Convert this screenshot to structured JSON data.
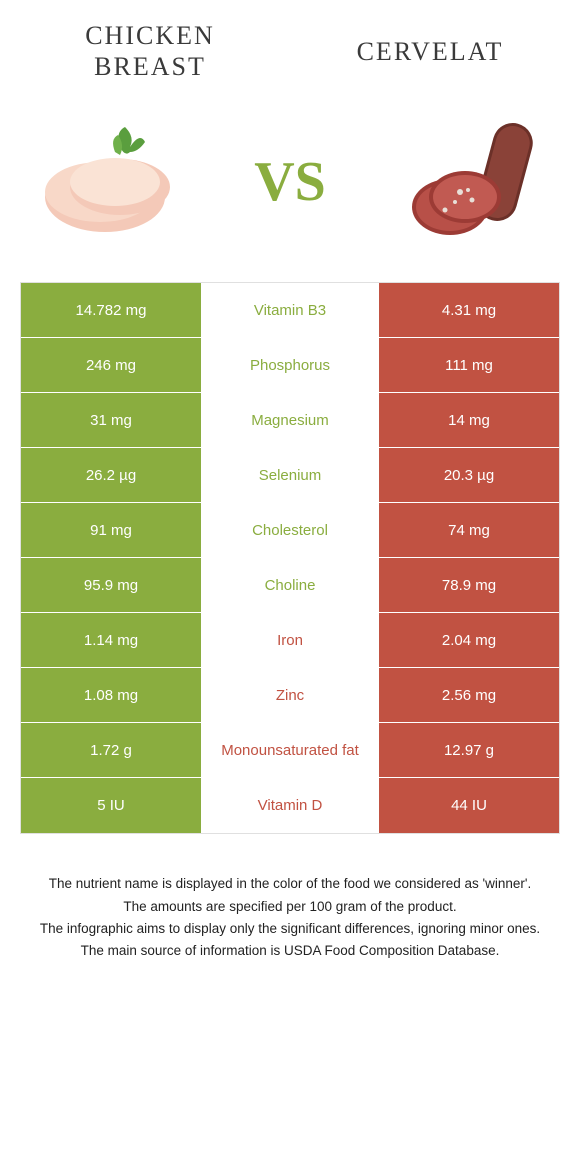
{
  "header": {
    "left_title": "CHICKEN BREAST",
    "right_title": "CERVELAT",
    "vs": "VS"
  },
  "colors": {
    "left_bg": "#8aad3f",
    "right_bg": "#c15242",
    "left_text": "#8aad3f",
    "right_text": "#c15242"
  },
  "rows": [
    {
      "left": "14.782 mg",
      "name": "Vitamin B3",
      "right": "4.31 mg",
      "winner": "left"
    },
    {
      "left": "246 mg",
      "name": "Phosphorus",
      "right": "111 mg",
      "winner": "left"
    },
    {
      "left": "31 mg",
      "name": "Magnesium",
      "right": "14 mg",
      "winner": "left"
    },
    {
      "left": "26.2 µg",
      "name": "Selenium",
      "right": "20.3 µg",
      "winner": "left"
    },
    {
      "left": "91 mg",
      "name": "Cholesterol",
      "right": "74 mg",
      "winner": "left"
    },
    {
      "left": "95.9 mg",
      "name": "Choline",
      "right": "78.9 mg",
      "winner": "left"
    },
    {
      "left": "1.14 mg",
      "name": "Iron",
      "right": "2.04 mg",
      "winner": "right"
    },
    {
      "left": "1.08 mg",
      "name": "Zinc",
      "right": "2.56 mg",
      "winner": "right"
    },
    {
      "left": "1.72 g",
      "name": "Monounsaturated fat",
      "right": "12.97 g",
      "winner": "right"
    },
    {
      "left": "5 IU",
      "name": "Vitamin D",
      "right": "44 IU",
      "winner": "right"
    }
  ],
  "footer": {
    "line1": "The nutrient name is displayed in the color of the food we considered as 'winner'.",
    "line2": "The amounts are specified per 100 gram of the product.",
    "line3": "The infographic aims to display only the significant differences, ignoring minor ones.",
    "line4": "The main source of information is USDA Food Composition Database."
  }
}
